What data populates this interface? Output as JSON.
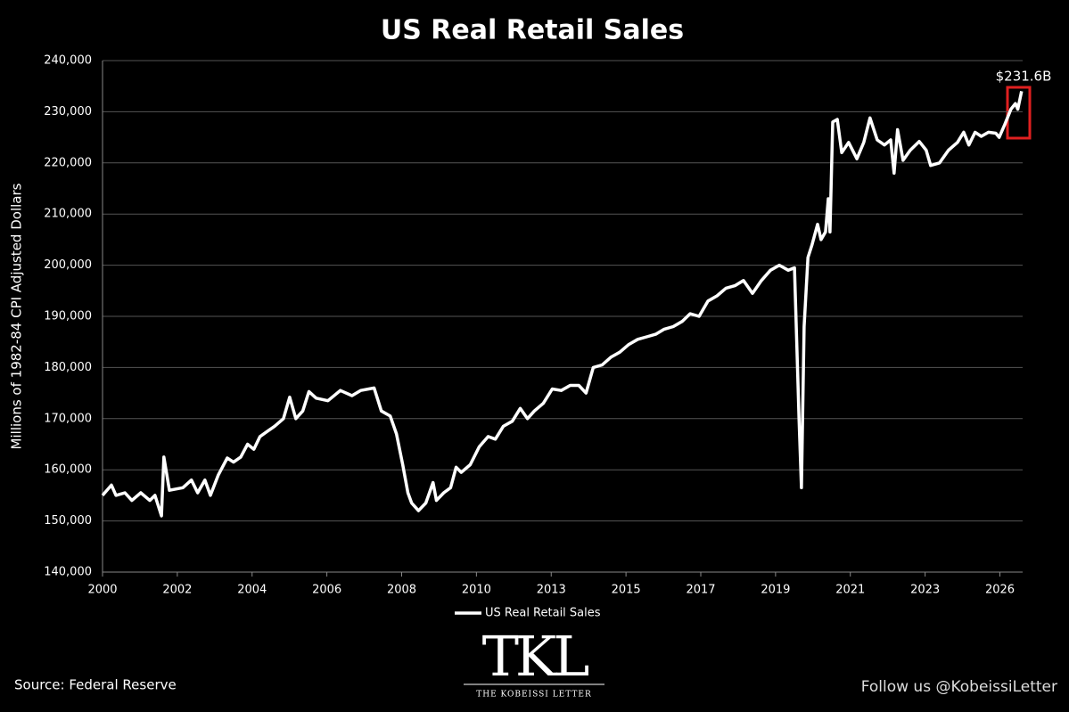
{
  "chart_data": {
    "type": "line",
    "title": "US Real Retail Sales",
    "ylabel": "Millions of 1982-84 CPI Adjusted Dollars",
    "annotation": "$231.6B",
    "source": "Source: Federal Reserve",
    "follow": "Follow us @KobeissiLetter",
    "logo": "TKL",
    "logo_subtitle": "THE KOBEISSI LETTER",
    "legend": "bottom",
    "grid": true,
    "xlim": [
      2000,
      2026.7
    ],
    "xticks": [
      {
        "value": 2000,
        "label": "2000"
      },
      {
        "value": 2002.17,
        "label": "2002"
      },
      {
        "value": 2004.34,
        "label": "2004"
      },
      {
        "value": 2006.51,
        "label": "2006"
      },
      {
        "value": 2008.68,
        "label": "2008"
      },
      {
        "value": 2010.85,
        "label": "2010"
      },
      {
        "value": 2013.02,
        "label": "2013"
      },
      {
        "value": 2015.19,
        "label": "2015"
      },
      {
        "value": 2017.36,
        "label": "2017"
      },
      {
        "value": 2019.53,
        "label": "2019"
      },
      {
        "value": 2021.7,
        "label": "2021"
      },
      {
        "value": 2023.87,
        "label": "2023"
      },
      {
        "value": 2026.04,
        "label": "2026"
      }
    ],
    "ylim": [
      140000,
      240000
    ],
    "yticks": [
      {
        "value": 140000,
        "label": "140,000"
      },
      {
        "value": 150000,
        "label": "150,000"
      },
      {
        "value": 160000,
        "label": "160,000"
      },
      {
        "value": 170000,
        "label": "170,000"
      },
      {
        "value": 180000,
        "label": "180,000"
      },
      {
        "value": 190000,
        "label": "190,000"
      },
      {
        "value": 200000,
        "label": "200,000"
      },
      {
        "value": 210000,
        "label": "210,000"
      },
      {
        "value": 220000,
        "label": "220,000"
      },
      {
        "value": 230000,
        "label": "230,000"
      },
      {
        "value": 240000,
        "label": "240,000"
      }
    ],
    "x": [
      2000.0,
      2000.26,
      2000.39,
      2000.65,
      2000.85,
      2001.11,
      2001.37,
      2001.52,
      2001.71,
      2001.78,
      2001.94,
      2002.33,
      2002.58,
      2002.76,
      2002.97,
      2003.13,
      2003.36,
      2003.62,
      2003.8,
      2004.01,
      2004.21,
      2004.39,
      2004.57,
      2004.78,
      2004.99,
      2005.25,
      2005.43,
      2005.61,
      2005.81,
      2005.99,
      2006.2,
      2006.54,
      2006.9,
      2007.24,
      2007.49,
      2007.88,
      2008.09,
      2008.35,
      2008.53,
      2008.71,
      2008.86,
      2008.97,
      2009.17,
      2009.38,
      2009.59,
      2009.69,
      2009.9,
      2010.1,
      2010.26,
      2010.41,
      2010.67,
      2010.93,
      2011.19,
      2011.4,
      2011.63,
      2011.89,
      2012.12,
      2012.33,
      2012.53,
      2012.79,
      2013.05,
      2013.31,
      2013.57,
      2013.82,
      2014.03,
      2014.24,
      2014.5,
      2014.75,
      2015.01,
      2015.27,
      2015.53,
      2015.79,
      2016.05,
      2016.3,
      2016.56,
      2016.82,
      2017.05,
      2017.31,
      2017.57,
      2017.83,
      2018.09,
      2018.35,
      2018.6,
      2018.86,
      2019.12,
      2019.38,
      2019.64,
      2019.9,
      2020.08,
      2020.21,
      2020.28,
      2020.36,
      2020.47,
      2020.59,
      2020.75,
      2020.85,
      2020.98,
      2021.06,
      2021.11,
      2021.19,
      2021.32,
      2021.45,
      2021.65,
      2021.89,
      2022.09,
      2022.27,
      2022.48,
      2022.69,
      2022.87,
      2022.97,
      2023.07,
      2023.23,
      2023.44,
      2023.7,
      2023.9,
      2024.03,
      2024.29,
      2024.55,
      2024.81,
      2024.99,
      2025.14,
      2025.32,
      2025.5,
      2025.71,
      2025.92,
      2026.02,
      2026.18,
      2026.36,
      2026.49,
      2026.56,
      2026.67
    ],
    "series": [
      {
        "name": "US Real Retail Sales",
        "color": "#ffffff",
        "values": [
          155000,
          157000,
          155000,
          155500,
          154000,
          155500,
          154000,
          155000,
          151000,
          162500,
          156000,
          156500,
          158000,
          155500,
          158000,
          155000,
          159000,
          162300,
          161500,
          162500,
          165000,
          164000,
          166500,
          167500,
          168500,
          170000,
          174200,
          170000,
          171500,
          175300,
          174000,
          173500,
          175500,
          174500,
          175500,
          176000,
          171500,
          170500,
          167000,
          161000,
          155500,
          153500,
          152000,
          153500,
          157500,
          154000,
          155500,
          156500,
          160500,
          159500,
          161000,
          164500,
          166500,
          166000,
          168500,
          169500,
          172000,
          170000,
          171500,
          173000,
          175800,
          175500,
          176500,
          176500,
          175000,
          180000,
          180500,
          182000,
          183000,
          184500,
          185500,
          186000,
          186500,
          187500,
          188000,
          189000,
          190500,
          190000,
          193000,
          194000,
          195500,
          196000,
          197000,
          194500,
          197000,
          199000,
          200000,
          199000,
          199500,
          170000,
          156500,
          188000,
          201500,
          204000,
          208000,
          205000,
          206500,
          213000,
          206500,
          228000,
          228500,
          222000,
          224000,
          220800,
          224000,
          228800,
          224500,
          223500,
          224500,
          218000,
          226500,
          220500,
          222500,
          224200,
          222500,
          219500,
          220000,
          222500,
          224000,
          226000,
          223500,
          226000,
          225200,
          226000,
          225800,
          225000,
          227500,
          230500,
          231600,
          230500,
          234000
        ]
      }
    ]
  }
}
